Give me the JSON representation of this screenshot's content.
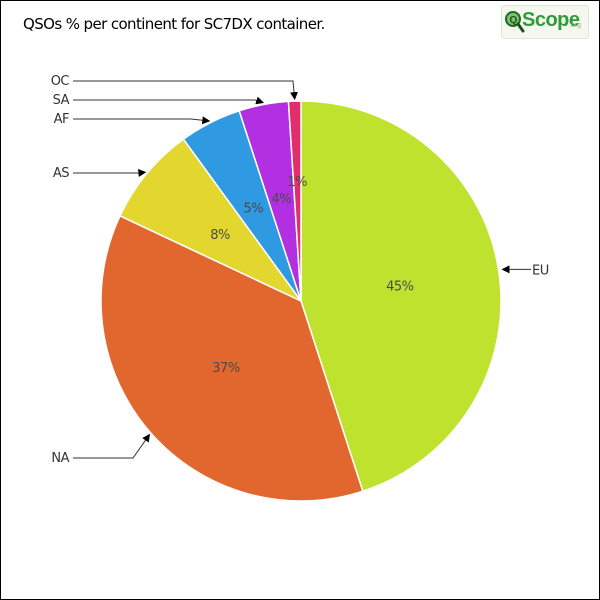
{
  "title": "QSOs % per continent for SC7DX container.",
  "logo": {
    "text": "Scope",
    "suffix": ".org",
    "icon": "magnifier-q-icon"
  },
  "colors": {
    "leader_line": "#333333",
    "slice_border": "#ffffff"
  },
  "chart_data": {
    "type": "pie",
    "title": "QSOs % per continent for SC7DX container.",
    "start_angle_deg": 0,
    "direction": "clockwise",
    "slices": [
      {
        "label": "EU",
        "value": 45,
        "display": "45%",
        "color": "#bfe22f",
        "leader": "right"
      },
      {
        "label": "NA",
        "value": 37,
        "display": "37%",
        "color": "#e2672f",
        "leader": "left"
      },
      {
        "label": "AS",
        "value": 8,
        "display": "8%",
        "color": "#e2d62f",
        "leader": "left"
      },
      {
        "label": "AF",
        "value": 5,
        "display": "5%",
        "color": "#2f9ae2",
        "leader": "left"
      },
      {
        "label": "SA",
        "value": 4,
        "display": "4%",
        "color": "#b22fe2",
        "leader": "left"
      },
      {
        "label": "OC",
        "value": 1,
        "display": "1%",
        "color": "#e22f6b",
        "leader": "left"
      }
    ]
  }
}
